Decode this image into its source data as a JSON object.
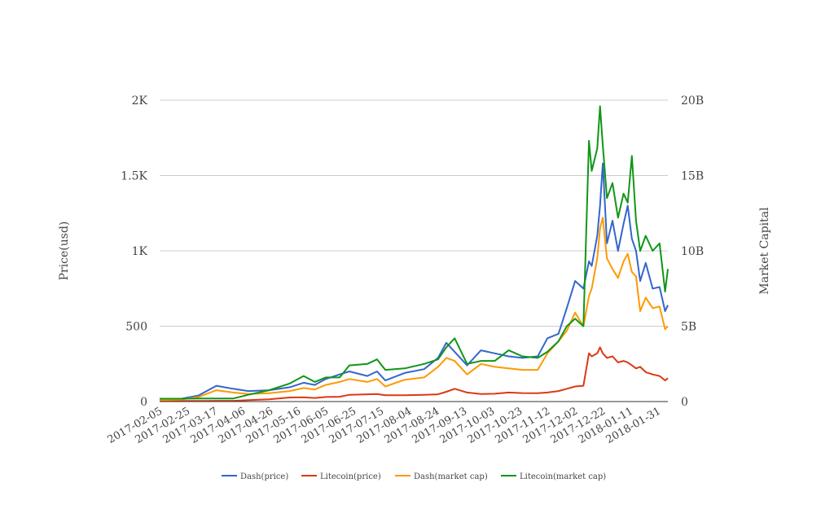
{
  "chart_data": {
    "type": "line",
    "title": "",
    "xlabel": "",
    "ylabel": "Price(usd)",
    "y2label": "Market Capital",
    "xlim": [
      "2017-02-05",
      "2018-02-07"
    ],
    "ylim": [
      0,
      2000
    ],
    "y2lim": [
      0,
      20
    ],
    "grid": true,
    "legend_position": "bottom",
    "x_ticks": [
      "2017-02-05",
      "2017-02-25",
      "2017-03-17",
      "2017-04-06",
      "2017-04-26",
      "2017-05-16",
      "2017-06-05",
      "2017-06-25",
      "2017-07-15",
      "2017-08-04",
      "2017-08-24",
      "2017-09-13",
      "2017-10-03",
      "2017-10-23",
      "2017-11-12",
      "2017-12-02",
      "2017-12-22",
      "2018-01-11",
      "2018-01-31"
    ],
    "y_ticks": [
      {
        "v": 0,
        "label": "0"
      },
      {
        "v": 500,
        "label": "500"
      },
      {
        "v": 1000,
        "label": "1K"
      },
      {
        "v": 1500,
        "label": "1.5K"
      },
      {
        "v": 2000,
        "label": "2K"
      }
    ],
    "y2_ticks": [
      {
        "v": 0,
        "label": "0"
      },
      {
        "v": 5,
        "label": "5B"
      },
      {
        "v": 10,
        "label": "10B"
      },
      {
        "v": 15,
        "label": "15B"
      },
      {
        "v": 20,
        "label": "20B"
      }
    ],
    "x": [
      "2017-02-05",
      "2017-02-20",
      "2017-03-05",
      "2017-03-18",
      "2017-03-30",
      "2017-04-10",
      "2017-04-25",
      "2017-05-10",
      "2017-05-20",
      "2017-05-28",
      "2017-06-05",
      "2017-06-15",
      "2017-06-22",
      "2017-07-05",
      "2017-07-12",
      "2017-07-18",
      "2017-08-01",
      "2017-08-15",
      "2017-08-25",
      "2017-08-31",
      "2017-09-06",
      "2017-09-15",
      "2017-09-25",
      "2017-10-05",
      "2017-10-15",
      "2017-10-25",
      "2017-11-05",
      "2017-11-12",
      "2017-11-20",
      "2017-11-26",
      "2017-12-02",
      "2017-12-08",
      "2017-12-12",
      "2017-12-14",
      "2017-12-18",
      "2017-12-20",
      "2017-12-22",
      "2017-12-25",
      "2017-12-29",
      "2018-01-02",
      "2018-01-06",
      "2018-01-09",
      "2018-01-12",
      "2018-01-15",
      "2018-01-18",
      "2018-01-22",
      "2018-01-27",
      "2018-02-01",
      "2018-02-05",
      "2018-02-07"
    ],
    "series": [
      {
        "name": "Dash(price)",
        "axis": "left",
        "color": "#3366cc",
        "values": [
          12,
          18,
          40,
          105,
          85,
          70,
          75,
          95,
          125,
          110,
          150,
          180,
          200,
          170,
          200,
          140,
          190,
          215,
          290,
          390,
          330,
          240,
          340,
          320,
          300,
          290,
          300,
          420,
          450,
          620,
          800,
          750,
          930,
          900,
          1100,
          1300,
          1580,
          1050,
          1200,
          1000,
          1180,
          1300,
          1080,
          1000,
          800,
          920,
          750,
          760,
          600,
          640
        ]
      },
      {
        "name": "Litecoin(price)",
        "axis": "left",
        "color": "#dc3912",
        "values": [
          4,
          4,
          4,
          5,
          5,
          9,
          15,
          27,
          28,
          24,
          30,
          32,
          45,
          48,
          50,
          42,
          42,
          45,
          48,
          65,
          85,
          60,
          50,
          52,
          60,
          56,
          55,
          60,
          70,
          85,
          100,
          105,
          320,
          300,
          320,
          360,
          320,
          290,
          300,
          260,
          270,
          260,
          240,
          220,
          230,
          195,
          180,
          170,
          140,
          155
        ]
      },
      {
        "name": "Dash(market cap)",
        "axis": "right",
        "color": "#ff9900",
        "values": [
          0.09,
          0.13,
          0.3,
          0.75,
          0.6,
          0.5,
          0.55,
          0.7,
          0.9,
          0.8,
          1.1,
          1.3,
          1.5,
          1.3,
          1.5,
          1.0,
          1.45,
          1.6,
          2.3,
          2.9,
          2.7,
          1.8,
          2.5,
          2.3,
          2.2,
          2.1,
          2.1,
          3.2,
          4.0,
          4.7,
          5.9,
          5.0,
          7.0,
          7.5,
          9.5,
          11.5,
          12.2,
          9.5,
          8.8,
          8.2,
          9.3,
          9.8,
          8.6,
          8.3,
          6.0,
          6.9,
          6.2,
          6.3,
          4.8,
          5.0
        ]
      },
      {
        "name": "Litecoin(market cap)",
        "axis": "right",
        "color": "#109618",
        "values": [
          0.19,
          0.19,
          0.2,
          0.2,
          0.2,
          0.45,
          0.75,
          1.2,
          1.7,
          1.3,
          1.6,
          1.6,
          2.4,
          2.5,
          2.8,
          2.1,
          2.2,
          2.5,
          2.8,
          3.6,
          4.2,
          2.5,
          2.7,
          2.7,
          3.4,
          3.0,
          2.9,
          3.3,
          4.0,
          5.0,
          5.5,
          5.0,
          17.3,
          15.3,
          16.8,
          19.6,
          17.0,
          13.5,
          14.5,
          12.2,
          13.8,
          13.2,
          16.3,
          12.0,
          10.0,
          11.0,
          10.0,
          10.5,
          7.3,
          8.8
        ]
      }
    ]
  }
}
